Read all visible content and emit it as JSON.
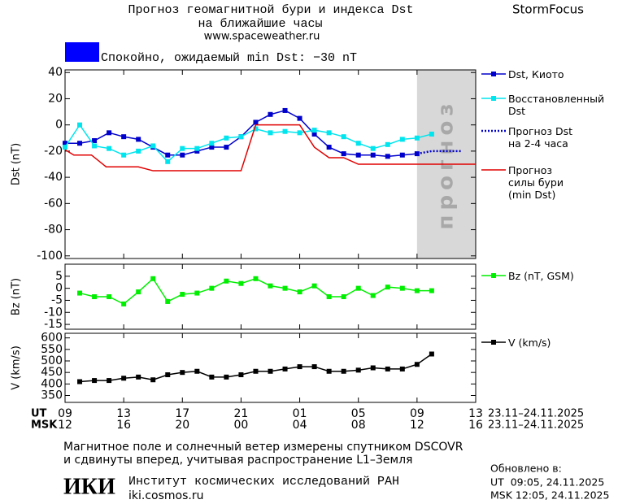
{
  "header": {
    "title": "Прогноз геомагнитной бури и индекса Dst",
    "subtitle": "на ближайшие часы",
    "url": "www.spaceweather.ru",
    "brand": "StormFocus"
  },
  "status": {
    "text": "Спокойно, ожидаемый min Dst: −30 nT",
    "color": "#0000ff"
  },
  "chart_data": [
    {
      "type": "line",
      "ylabel": "Dst (nT)",
      "xlim": [
        9,
        37
      ],
      "ylim": [
        -102,
        42
      ],
      "yticks": [
        40,
        20,
        0,
        -20,
        -40,
        -60,
        -80,
        -100
      ],
      "forecast_band": [
        33,
        37
      ],
      "forecast_label": "прогноз",
      "forecast_color": "#d8d8d8",
      "series": [
        {
          "name": "Dst, Киото",
          "color": "#0000cc",
          "style": "solid",
          "marker": true,
          "x": [
            9,
            10,
            11,
            12,
            13,
            14,
            15,
            16,
            17,
            18,
            19,
            20,
            21,
            22,
            23,
            24,
            25,
            26,
            27,
            28,
            29,
            30,
            31,
            32,
            33
          ],
          "values": [
            -14,
            -14,
            -12,
            -6,
            -9,
            -11,
            -17,
            -23,
            -23,
            -20,
            -17,
            -17,
            -9,
            2,
            8,
            11,
            5,
            -7,
            -17,
            -22,
            -23,
            -23,
            -24,
            -23,
            -22
          ]
        },
        {
          "name": "Восстановленный\nDst",
          "color": "#00e5ee",
          "style": "solid",
          "marker": true,
          "x": [
            9,
            10,
            11,
            12,
            13,
            14,
            15,
            16,
            17,
            18,
            19,
            20,
            21,
            22,
            23,
            24,
            25,
            26,
            27,
            28,
            29,
            30,
            31,
            32,
            33,
            34
          ],
          "values": [
            -17,
            0,
            -16,
            -18,
            -23,
            -20,
            -16,
            -28,
            -18,
            -18,
            -14,
            -10,
            -9,
            -3,
            -6,
            -5,
            -6,
            -4,
            -6,
            -9,
            -14,
            -18,
            -15,
            -11,
            -10,
            -7
          ]
        },
        {
          "name": "Прогноз Dst\nна 2-4 часа",
          "color": "#0000cc",
          "style": "dotted",
          "marker": false,
          "x": [
            33,
            34,
            35,
            36
          ],
          "values": [
            -22,
            -20,
            -20,
            -20
          ]
        },
        {
          "name": "Прогноз\nсилы бури\n(min Dst)",
          "color": "#e00000",
          "style": "solid",
          "marker": false,
          "x": [
            9,
            9.6,
            10.8,
            11.8,
            14,
            15,
            21,
            22,
            25,
            26,
            27,
            28,
            29,
            37
          ],
          "values": [
            -19,
            -23,
            -23,
            -32,
            -32,
            -35,
            -35,
            0,
            0,
            -17,
            -25,
            -25,
            -30,
            -30
          ]
        }
      ]
    },
    {
      "type": "line",
      "ylabel": "Bz (nT)",
      "xlim": [
        9,
        37
      ],
      "ylim": [
        -17,
        10
      ],
      "yticks": [
        5,
        0,
        -5,
        -10,
        -15
      ],
      "series": [
        {
          "name": "Bz (nT, GSM)",
          "color": "#00ee00",
          "style": "solid",
          "marker": true,
          "x": [
            10,
            11,
            12,
            13,
            14,
            15,
            16,
            17,
            18,
            19,
            20,
            21,
            22,
            23,
            24,
            25,
            26,
            27,
            28,
            29,
            30,
            31,
            32,
            33,
            34
          ],
          "values": [
            -2,
            -3.5,
            -3.5,
            -6.5,
            -1.5,
            4,
            -5.5,
            -2.5,
            -2,
            0,
            3,
            2,
            4,
            1,
            0,
            -1.5,
            1,
            -3.5,
            -3.5,
            0,
            -3,
            0.5,
            0,
            -1,
            -1
          ]
        }
      ]
    },
    {
      "type": "line",
      "ylabel": "V (km/s)",
      "xlim": [
        9,
        37
      ],
      "ylim": [
        320,
        620
      ],
      "yticks": [
        600,
        550,
        500,
        450,
        400,
        350
      ],
      "xticks": [
        {
          "value": 9,
          "label": "09"
        },
        13,
        17,
        21,
        {
          "value": 25,
          "label": "01"
        },
        {
          "value": 29,
          "label": "05"
        },
        {
          "value": 33,
          "label": "09"
        },
        {
          "value": 37,
          "label": "13"
        }
      ],
      "msk_labels": [
        "12",
        "16",
        "20",
        "00",
        "04",
        "08",
        "12",
        "16"
      ],
      "ut_label": "UT",
      "msk_label": "MSK",
      "ut_range": "23.11–24.11.2025",
      "msk_range": "23.11–24.11.2025",
      "series": [
        {
          "name": "V (km/s)",
          "color": "#000000",
          "style": "solid",
          "marker": true,
          "x": [
            10,
            11,
            12,
            13,
            14,
            15,
            16,
            17,
            18,
            19,
            20,
            21,
            22,
            23,
            24,
            25,
            26,
            27,
            28,
            29,
            30,
            31,
            32,
            33,
            34
          ],
          "values": [
            410,
            415,
            415,
            425,
            430,
            418,
            440,
            450,
            455,
            430,
            430,
            440,
            455,
            455,
            465,
            475,
            475,
            455,
            455,
            460,
            470,
            465,
            465,
            485,
            530
          ]
        }
      ]
    }
  ],
  "footer": {
    "note1": "Магнитное поле и солнечный ветер измерены спутником DSCOVR",
    "note2": "и сдвинуты вперед, учитывая распространение L1–Земля",
    "logo": "ИКИ",
    "institute": "Институт космических исследований РАН",
    "site": "iki.cosmos.ru",
    "updated": "Обновлено в:",
    "updated_ut": "UT  09:05, 24.11.2025",
    "updated_msk": "MSK 12:05, 24.11.2025"
  }
}
